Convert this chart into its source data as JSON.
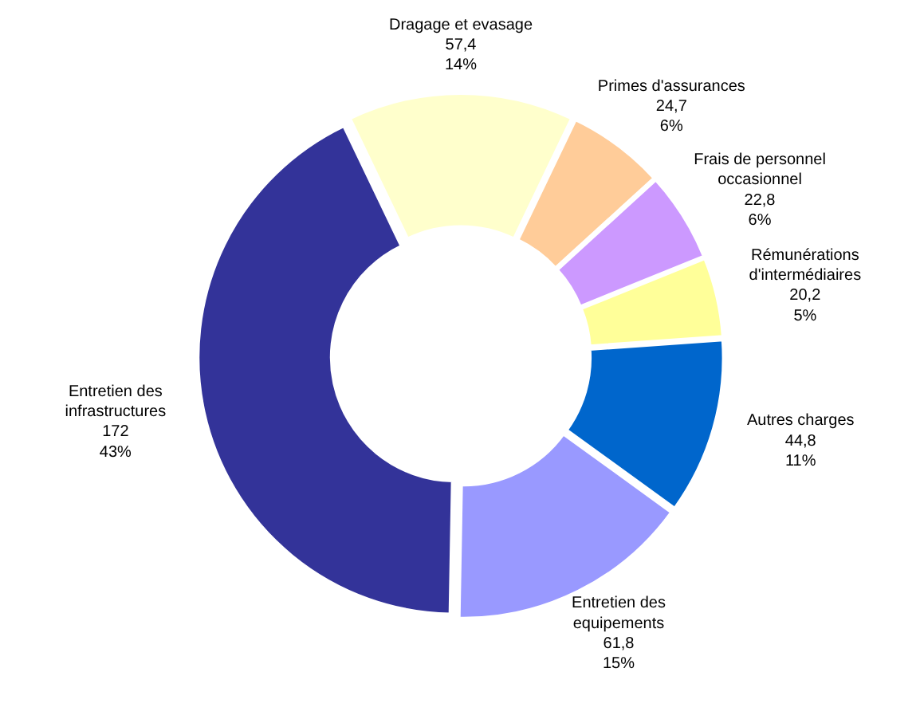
{
  "chart_data": {
    "type": "donut",
    "categories": [
      "Dragage et evasage",
      "Primes d'assurances",
      "Frais de personnel\noccasionnel",
      "Rémunérations\nd'intermédiaires",
      "Autres charges",
      "Entretien des\nequipements",
      "Entretien des\ninfrastructures"
    ],
    "values": [
      57.4,
      24.7,
      22.8,
      20.2,
      44.8,
      61.8,
      172
    ],
    "colors": [
      "#ffffcc",
      "#ffcc99",
      "#cc99ff",
      "#ffff99",
      "#0066cc",
      "#9999ff",
      "#333399"
    ],
    "value_labels": [
      "57,4\n14%",
      "24,7\n6%",
      "22,8\n6%",
      "20,2\n5%",
      "44,8\n11%",
      "61,8\n15%",
      "172\n43%"
    ]
  }
}
